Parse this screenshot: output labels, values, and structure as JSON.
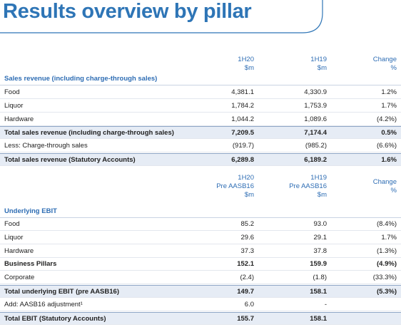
{
  "title": "Results overview by pillar",
  "table1": {
    "header": [
      [
        "1H20",
        "$m"
      ],
      [
        "1H19",
        "$m"
      ],
      [
        "Change",
        "%"
      ]
    ],
    "section": "Sales revenue (including charge-through sales)",
    "rows": [
      [
        "Food",
        "4,381.1",
        "4,330.9",
        "1.2%"
      ],
      [
        "Liquor",
        "1,784.2",
        "1,753.9",
        "1.7%"
      ],
      [
        "Hardware",
        "1,044.2",
        "1,089.6",
        "(4.2%)"
      ],
      [
        "Total sales revenue (including charge-through sales)",
        "7,209.5",
        "7,174.4",
        "0.5%"
      ],
      [
        "Less: Charge-through sales",
        "(919.7)",
        "(985.2)",
        "(6.6%)"
      ],
      [
        "Total sales revenue (Statutory Accounts)",
        "6,289.8",
        "6,189.2",
        "1.6%"
      ]
    ]
  },
  "table2": {
    "header": [
      [
        "1H20",
        "Pre AASB16",
        "$m"
      ],
      [
        "1H19",
        "Pre AASB16",
        "$m"
      ],
      [
        "Change",
        "%"
      ]
    ],
    "section": "Underlying EBIT",
    "rows": [
      [
        "Food",
        "85.2",
        "93.0",
        "(8.4%)"
      ],
      [
        "Liquor",
        "29.6",
        "29.1",
        "1.7%"
      ],
      [
        "Hardware",
        "37.3",
        "37.8",
        "(1.3%)"
      ],
      [
        "Business Pillars",
        "152.1",
        "159.9",
        "(4.9%)"
      ],
      [
        "Corporate",
        "(2.4)",
        "(1.8)",
        "(33.3%)"
      ],
      [
        "Total underlying EBIT (pre AASB16)",
        "149.7",
        "158.1",
        "(5.3%)"
      ],
      [
        "Add: AASB16 adjustment¹",
        "6.0",
        "-",
        null
      ],
      [
        "Total EBIT (Statutory Accounts)",
        "155.7",
        "158.1",
        null
      ]
    ]
  }
}
